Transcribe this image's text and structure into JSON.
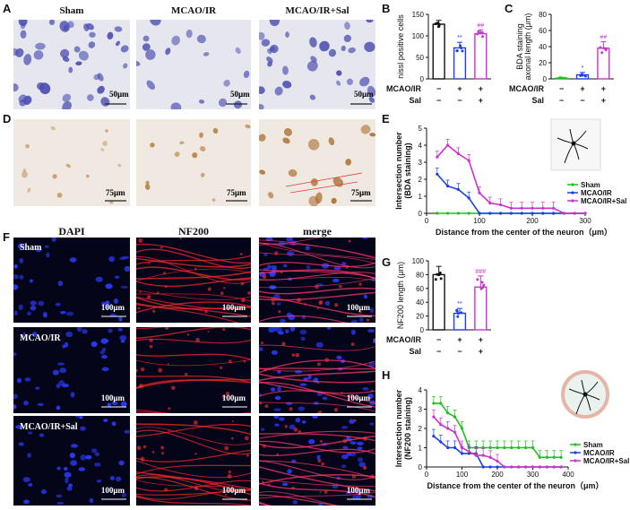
{
  "panels": {
    "A": {
      "letter": "A",
      "columns": [
        "Sham",
        "MCAO/IR",
        "MCAO/IR+Sal"
      ],
      "scale": "50μm"
    },
    "B": {
      "letter": "B",
      "ylabel": "nissl positive cells",
      "yticks": [
        "0",
        "50",
        "100",
        "150"
      ],
      "sig": [
        "**",
        "##"
      ]
    },
    "C": {
      "letter": "C",
      "ylabel": "BDA staining axonal length (μm)",
      "ylabel_l1": "BDA staining",
      "ylabel_l2": "axonal length (μm)",
      "yticks": [
        "0",
        "20",
        "40",
        "60",
        "80"
      ],
      "sig": [
        "*",
        "##"
      ]
    },
    "D": {
      "letter": "D",
      "scale": "75μm"
    },
    "E": {
      "letter": "E",
      "ylabel_l1": "Intersection number",
      "ylabel_l2": "(BDA staining)",
      "xlabel": "Distance from the center of the neuron（μm）",
      "xticks": [
        "0",
        "100",
        "200",
        "300"
      ],
      "yticks": [
        "0",
        "1",
        "2",
        "3",
        "4",
        "5"
      ]
    },
    "F": {
      "letter": "F",
      "columns": [
        "DAPI",
        "NF200",
        "merge"
      ],
      "rows": [
        "Sham",
        "MCAO/IR",
        "MCAO/IR+Sal"
      ],
      "scale": "100μm"
    },
    "G": {
      "letter": "G",
      "ylabel": "NF200 length (μm)",
      "yticks": [
        "0",
        "20",
        "40",
        "60",
        "80",
        "100"
      ],
      "sig": [
        "**",
        "###"
      ]
    },
    "H": {
      "letter": "H",
      "ylabel_l1": "Intersection number",
      "ylabel_l2": "(NF200 staining)",
      "xlabel": "Distance from the center of the neuron（μm）",
      "xticks": [
        "0",
        "100",
        "200",
        "300",
        "400"
      ],
      "yticks": [
        "0",
        "1",
        "2",
        "3",
        "4"
      ]
    }
  },
  "treatment": {
    "row1": "MCAO/IR",
    "row2": "Sal",
    "signs_row1": [
      "−",
      "+",
      "+"
    ],
    "signs_row2": [
      "−",
      "−",
      "+"
    ]
  },
  "legend": [
    "Sham",
    "MCAO/IR",
    "MCAO/IR+Sal"
  ],
  "colors": {
    "sham": "#1fbf1f",
    "mcao": "#1f3fe0",
    "sal": "#cc33cc",
    "black": "#111111"
  },
  "chart_data": [
    {
      "id": "B",
      "type": "bar",
      "categories": [
        "Sham",
        "MCAO/IR",
        "MCAO/IR+Sal"
      ],
      "values": [
        127,
        72,
        105
      ],
      "errors": [
        9,
        13,
        9
      ],
      "ylim": [
        0,
        150
      ],
      "ylabel": "nissl positive cells"
    },
    {
      "id": "C",
      "type": "bar",
      "categories": [
        "Sham",
        "MCAO/IR",
        "MCAO/IR+Sal"
      ],
      "values": [
        1,
        5,
        38
      ],
      "errors": [
        0.5,
        3,
        8
      ],
      "ylim": [
        0,
        80
      ],
      "ylabel": "BDA staining axonal length (μm)"
    },
    {
      "id": "G",
      "type": "bar",
      "categories": [
        "Sham",
        "MCAO/IR",
        "MCAO/IR+Sal"
      ],
      "values": [
        80,
        24,
        62
      ],
      "errors": [
        12,
        7,
        16
      ],
      "ylim": [
        0,
        100
      ],
      "ylabel": "NF200 length (μm)"
    },
    {
      "id": "E",
      "type": "line",
      "xlim": [
        0,
        300
      ],
      "ylim": [
        0,
        5
      ],
      "x": [
        20,
        40,
        60,
        80,
        100,
        120,
        140,
        160,
        180,
        200,
        220,
        240,
        260,
        280,
        300
      ],
      "series": [
        {
          "name": "Sham",
          "values": [
            0,
            0,
            0,
            0,
            0,
            0,
            0,
            0,
            0,
            0,
            0,
            0,
            0,
            0,
            0
          ]
        },
        {
          "name": "MCAO/IR",
          "values": [
            2.3,
            1.6,
            1.4,
            0.9,
            0,
            0,
            0,
            0,
            0,
            0,
            0,
            0,
            0,
            0,
            0
          ]
        },
        {
          "name": "MCAO/IR+Sal",
          "values": [
            3.3,
            4.0,
            3.5,
            3.1,
            1.2,
            0.6,
            0.5,
            0.3,
            0.3,
            0.3,
            0.3,
            0.3,
            0,
            0,
            0
          ]
        }
      ]
    },
    {
      "id": "H",
      "type": "line",
      "xlim": [
        0,
        400
      ],
      "ylim": [
        0,
        4
      ],
      "x": [
        20,
        40,
        60,
        80,
        100,
        120,
        140,
        160,
        180,
        200,
        220,
        240,
        260,
        280,
        300,
        320,
        340,
        360,
        380
      ],
      "series": [
        {
          "name": "Sham",
          "values": [
            3.3,
            3.3,
            2.8,
            2.6,
            2.0,
            1.0,
            1.0,
            1.0,
            1.0,
            1.0,
            1.0,
            1.0,
            1.0,
            1.0,
            1.0,
            0.5,
            0.5,
            0.5,
            0.5
          ]
        },
        {
          "name": "MCAO/IR",
          "values": [
            1.6,
            1.3,
            1.0,
            1.0,
            0.7,
            0.7,
            0.7,
            0,
            0,
            0,
            0,
            0,
            0,
            0,
            0,
            0,
            0,
            0,
            0
          ]
        },
        {
          "name": "MCAO/IR+Sal",
          "values": [
            2.6,
            2.2,
            2.0,
            1.8,
            1.0,
            0.8,
            0.6,
            0.6,
            0.5,
            0.3,
            0,
            0,
            0,
            0,
            0,
            0,
            0,
            0,
            0
          ]
        }
      ]
    }
  ]
}
